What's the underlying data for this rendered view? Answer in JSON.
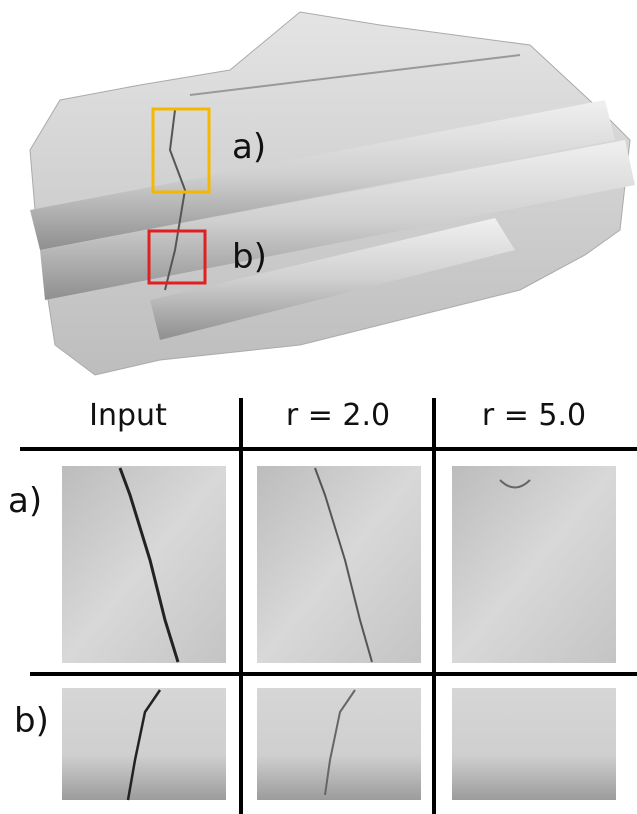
{
  "overview": {
    "labels": [
      "a)",
      "b)"
    ]
  },
  "table": {
    "header": [
      "Input",
      "r = 2.0",
      "r = 5.0"
    ],
    "row_labels": [
      "a)",
      "b)"
    ]
  }
}
